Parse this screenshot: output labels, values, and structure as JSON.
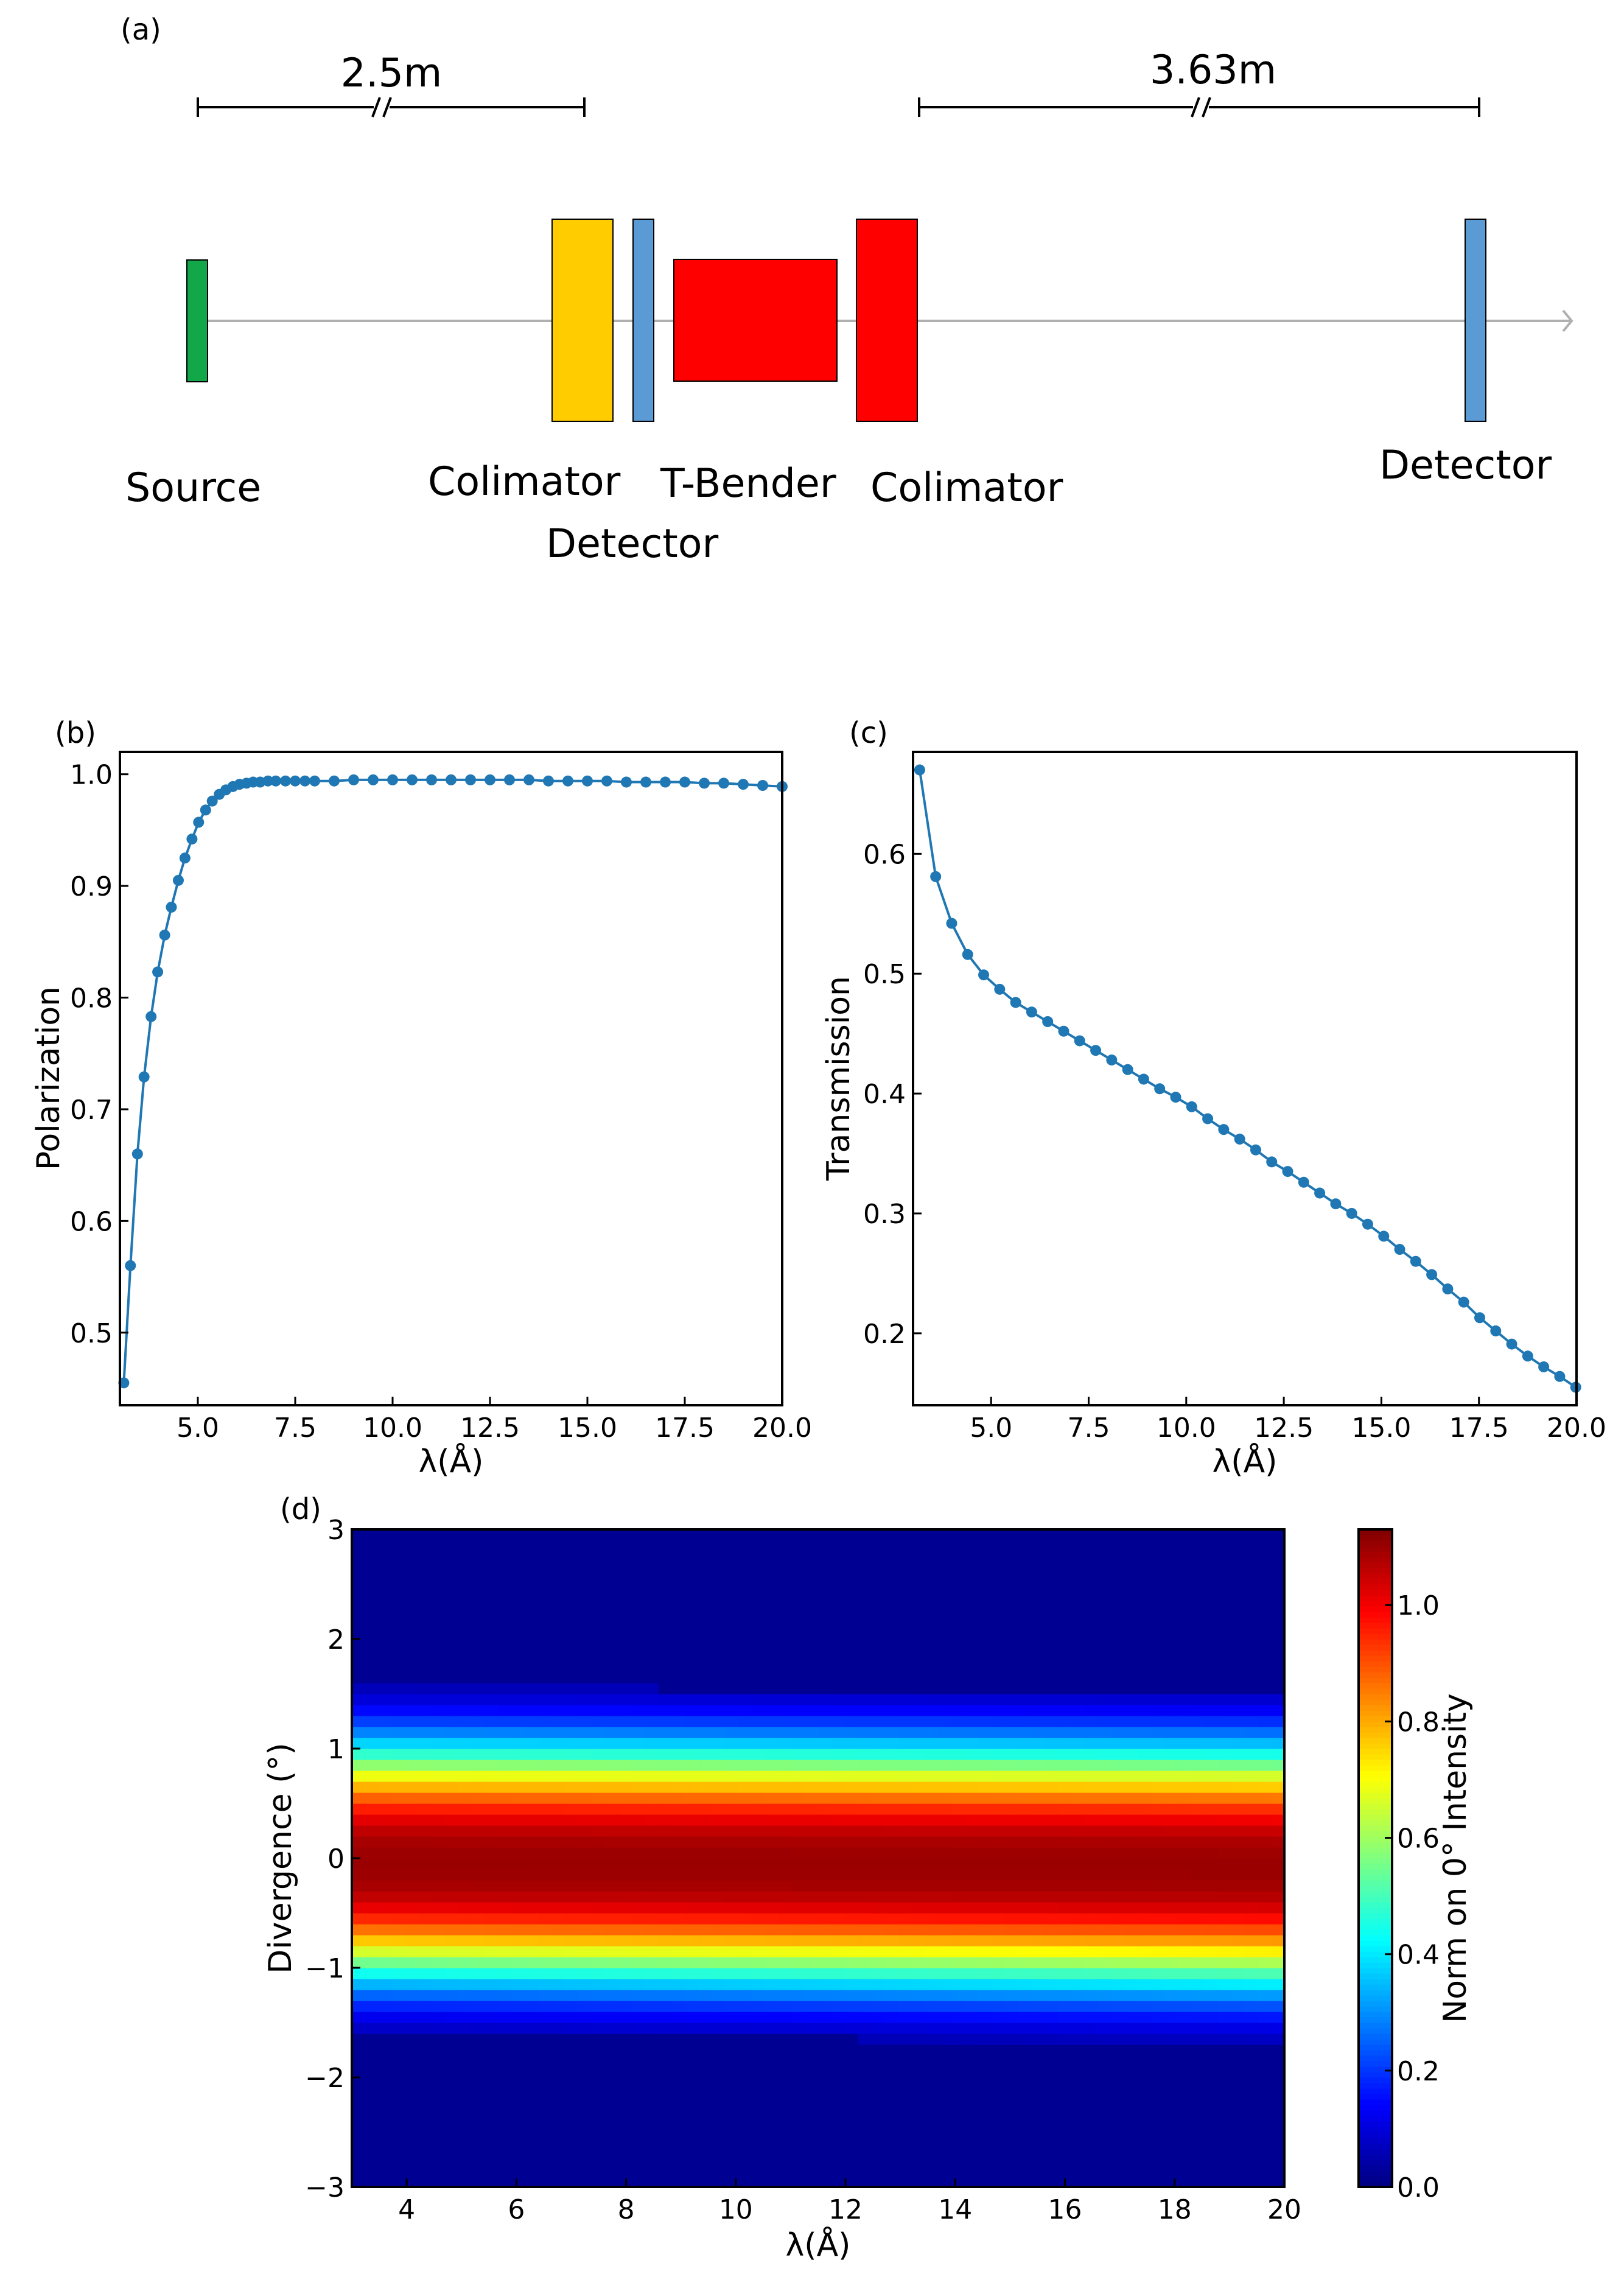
{
  "colors": {
    "line": "#1f77b4",
    "source": "#12a84a",
    "collimator1": "#ffcc00",
    "detector": "#5b9bd5",
    "tbender": "#ff0000",
    "collimator2": "#ff0000",
    "beam": "#b0b0b0"
  },
  "diagram": {
    "panel_label": "(a)",
    "distance_left": "2.5m",
    "distance_right": "3.63m",
    "labels": {
      "source": "Source",
      "colimator1": "Colimator",
      "detector1": "Detector",
      "tbender": "T-Bender",
      "colimator2": "Colimator",
      "detector2": "Detector"
    }
  },
  "chart_data": [
    {
      "panel": "(b)",
      "type": "line",
      "title": "",
      "xlabel": "λ(Å)",
      "ylabel": "Polarization",
      "xlim": [
        3.0,
        20.0
      ],
      "ylim": [
        0.435,
        1.02
      ],
      "xticks": [
        5.0,
        7.5,
        10.0,
        12.5,
        15.0,
        17.5,
        20.0
      ],
      "xtick_labels": [
        "5.0",
        "7.5",
        "10.0",
        "12.5",
        "15.0",
        "17.5",
        "20.0"
      ],
      "yticks": [
        0.5,
        0.6,
        0.7,
        0.8,
        0.9,
        1.0
      ],
      "ytick_labels": [
        "0.5",
        "0.6",
        "0.7",
        "0.8",
        "0.9",
        "1.0"
      ],
      "x": [
        3.1,
        3.27,
        3.45,
        3.62,
        3.8,
        3.97,
        4.15,
        4.32,
        4.5,
        4.67,
        4.85,
        5.02,
        5.2,
        5.37,
        5.55,
        5.72,
        5.9,
        6.07,
        6.25,
        6.42,
        6.6,
        6.8,
        7.0,
        7.25,
        7.5,
        7.75,
        8.0,
        8.5,
        9.0,
        9.5,
        10.0,
        10.5,
        11.0,
        11.5,
        12.0,
        12.5,
        13.0,
        13.5,
        14.0,
        14.5,
        15.0,
        15.5,
        16.0,
        16.5,
        17.0,
        17.5,
        18.0,
        18.5,
        19.0,
        19.5,
        20.0
      ],
      "y": [
        0.455,
        0.56,
        0.66,
        0.729,
        0.783,
        0.823,
        0.856,
        0.881,
        0.905,
        0.925,
        0.942,
        0.957,
        0.968,
        0.976,
        0.982,
        0.986,
        0.989,
        0.991,
        0.992,
        0.993,
        0.993,
        0.994,
        0.994,
        0.994,
        0.994,
        0.994,
        0.994,
        0.994,
        0.995,
        0.995,
        0.995,
        0.995,
        0.995,
        0.995,
        0.995,
        0.995,
        0.995,
        0.995,
        0.994,
        0.994,
        0.994,
        0.994,
        0.993,
        0.993,
        0.993,
        0.993,
        0.992,
        0.992,
        0.991,
        0.99,
        0.989
      ]
    },
    {
      "panel": "(c)",
      "type": "line",
      "title": "",
      "xlabel": "λ(Å)",
      "ylabel": "Transmission",
      "xlim": [
        3.0,
        20.0
      ],
      "ylim": [
        0.14,
        0.685
      ],
      "xticks": [
        5.0,
        7.5,
        10.0,
        12.5,
        15.0,
        17.5,
        20.0
      ],
      "xtick_labels": [
        "5.0",
        "7.5",
        "10.0",
        "12.5",
        "15.0",
        "17.5",
        "20.0"
      ],
      "yticks": [
        0.2,
        0.3,
        0.4,
        0.5,
        0.6
      ],
      "ytick_labels": [
        "0.2",
        "0.3",
        "0.4",
        "0.5",
        "0.6"
      ],
      "x": [
        3.17,
        3.58,
        3.99,
        4.4,
        4.81,
        5.22,
        5.63,
        6.04,
        6.45,
        6.86,
        7.27,
        7.68,
        8.09,
        8.5,
        8.91,
        9.32,
        9.73,
        10.14,
        10.55,
        10.96,
        11.37,
        11.78,
        12.19,
        12.6,
        13.01,
        13.42,
        13.83,
        14.24,
        14.65,
        15.06,
        15.47,
        15.88,
        16.29,
        16.7,
        17.11,
        17.52,
        17.93,
        18.34,
        18.75,
        19.16,
        19.57,
        19.98
      ],
      "y": [
        0.67,
        0.581,
        0.542,
        0.516,
        0.499,
        0.487,
        0.476,
        0.468,
        0.46,
        0.452,
        0.444,
        0.436,
        0.428,
        0.42,
        0.412,
        0.404,
        0.397,
        0.389,
        0.379,
        0.37,
        0.362,
        0.353,
        0.343,
        0.335,
        0.326,
        0.317,
        0.308,
        0.3,
        0.291,
        0.281,
        0.27,
        0.26,
        0.249,
        0.237,
        0.226,
        0.213,
        0.202,
        0.191,
        0.181,
        0.172,
        0.164,
        0.155
      ]
    },
    {
      "panel": "(d)",
      "type": "heatmap",
      "title": "",
      "xlabel": "λ(Å)",
      "ylabel": "Divergence (°)",
      "xlim": [
        3.0,
        20.0
      ],
      "ylim": [
        -3.0,
        3.0
      ],
      "xticks": [
        4,
        6,
        8,
        10,
        12,
        14,
        16,
        18,
        20
      ],
      "xtick_labels": [
        "4",
        "6",
        "8",
        "10",
        "12",
        "14",
        "16",
        "18",
        "20"
      ],
      "yticks": [
        -3,
        -2,
        -1,
        0,
        1,
        2,
        3
      ],
      "ytick_labels": [
        "−3",
        "−2",
        "−1",
        "0",
        "1",
        "2",
        "3"
      ],
      "colorbar": {
        "label": "Norm on 0° Intensity",
        "range": [
          0.0,
          1.13
        ],
        "ticks": [
          0.0,
          0.2,
          0.4,
          0.6,
          0.8,
          1.0
        ],
        "tick_labels": [
          "0.0",
          "0.2",
          "0.4",
          "0.6",
          "0.8",
          "1.0"
        ],
        "colormap": "jet"
      },
      "n_lambda_bins": 70,
      "n_divergence_bins": 60,
      "profile_center": -0.05,
      "profile_half_width_upper": 1.4,
      "profile_half_width_lower": 1.35,
      "peak_intensity": 1.1
    }
  ]
}
